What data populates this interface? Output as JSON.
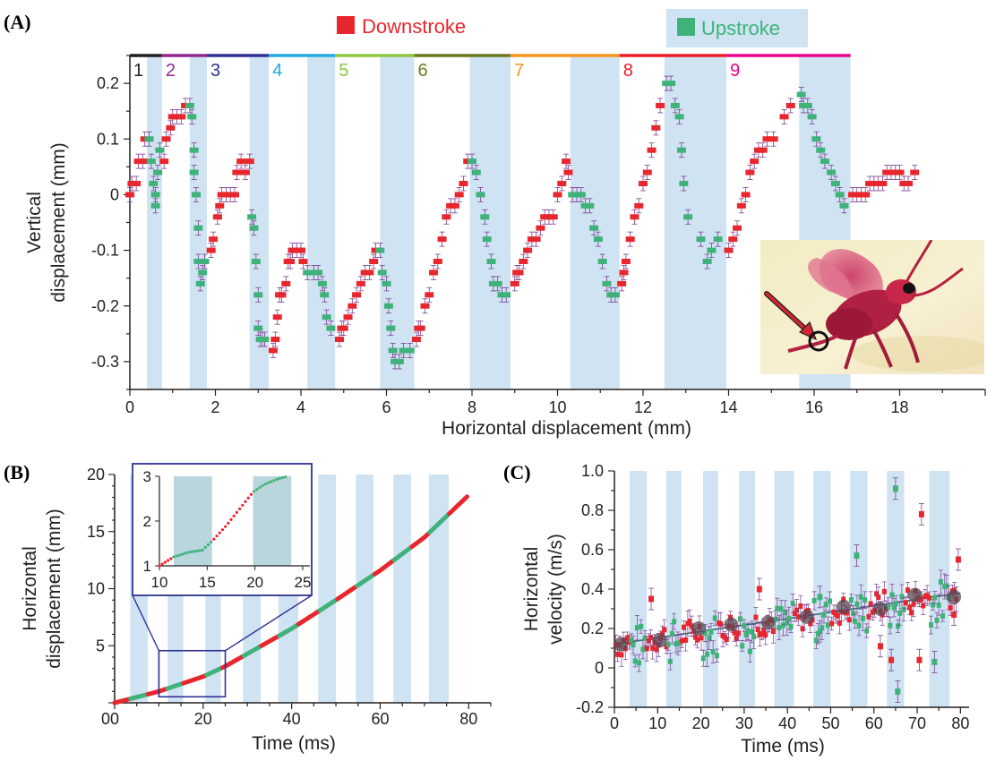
{
  "colors": {
    "downstroke": "#e8262e",
    "upstroke": "#3fb27a",
    "band": "#cfe3f3",
    "trend": "#3b6a73",
    "errorbar": "#7b3f91",
    "inset_frame": "#2e3192",
    "arrow": "#d22630"
  },
  "chart_data": [
    {
      "panel": "(A)",
      "type": "scatter",
      "xlabel": "Horizontal displacement (mm)",
      "ylabel_lines": [
        "Vertical",
        "displacement (mm)"
      ],
      "xlim": [
        0,
        20
      ],
      "ylim": [
        -0.35,
        0.25
      ],
      "xticks": [
        0,
        2,
        4,
        6,
        8,
        10,
        12,
        14,
        16,
        18
      ],
      "yticks": [
        0.2,
        0.1,
        0,
        -0.1,
        -0.2,
        -0.3
      ],
      "ytick_labels": [
        "0.2",
        "0.1",
        "0",
        "-0.1",
        "-0.2",
        "-0.3"
      ],
      "legend": {
        "downstroke": "Downstroke",
        "upstroke": "Upstroke"
      },
      "upstroke_bands_x": [
        [
          0.4,
          0.75
        ],
        [
          1.4,
          1.8
        ],
        [
          2.8,
          3.25
        ],
        [
          4.15,
          4.8
        ],
        [
          5.85,
          6.65
        ],
        [
          7.95,
          8.9
        ],
        [
          10.3,
          11.45
        ],
        [
          12.5,
          13.95
        ],
        [
          15.65,
          16.85
        ]
      ],
      "stroke_segments": [
        {
          "label": "1",
          "x": [
            0.0,
            0.75
          ],
          "color": "#231f20"
        },
        {
          "label": "2",
          "x": [
            0.75,
            1.8
          ],
          "color": "#92278f"
        },
        {
          "label": "3",
          "x": [
            1.8,
            3.25
          ],
          "color": "#2e3192"
        },
        {
          "label": "4",
          "x": [
            3.25,
            4.8
          ],
          "color": "#27aae1"
        },
        {
          "label": "5",
          "x": [
            4.8,
            6.65
          ],
          "color": "#8dc63f"
        },
        {
          "label": "6",
          "x": [
            6.65,
            8.9
          ],
          "color": "#6b7a1e"
        },
        {
          "label": "7",
          "x": [
            8.9,
            11.45
          ],
          "color": "#f7941d"
        },
        {
          "label": "8",
          "x": [
            11.45,
            13.95
          ],
          "color": "#ed1c24"
        },
        {
          "label": "9",
          "x": [
            13.95,
            16.85
          ],
          "color": "#ec008c"
        }
      ],
      "downstroke_points": [
        [
          0.0,
          0.0
        ],
        [
          0.05,
          0.02
        ],
        [
          0.15,
          0.02
        ],
        [
          0.2,
          0.06
        ],
        [
          0.3,
          0.06
        ],
        [
          0.35,
          0.1
        ],
        [
          0.8,
          0.06
        ],
        [
          0.85,
          0.1
        ],
        [
          0.95,
          0.12
        ],
        [
          1.0,
          0.14
        ],
        [
          1.1,
          0.14
        ],
        [
          1.2,
          0.14
        ],
        [
          1.3,
          0.16
        ],
        [
          1.9,
          -0.1
        ],
        [
          1.95,
          -0.08
        ],
        [
          2.05,
          -0.04
        ],
        [
          2.1,
          -0.02
        ],
        [
          2.15,
          0.0
        ],
        [
          2.25,
          0.0
        ],
        [
          2.35,
          0.0
        ],
        [
          2.45,
          0.0
        ],
        [
          2.5,
          0.04
        ],
        [
          2.6,
          0.06
        ],
        [
          2.7,
          0.04
        ],
        [
          2.8,
          0.06
        ],
        [
          3.35,
          -0.28
        ],
        [
          3.4,
          -0.26
        ],
        [
          3.45,
          -0.22
        ],
        [
          3.5,
          -0.18
        ],
        [
          3.55,
          -0.18
        ],
        [
          3.65,
          -0.16
        ],
        [
          3.7,
          -0.12
        ],
        [
          3.75,
          -0.12
        ],
        [
          3.8,
          -0.1
        ],
        [
          3.9,
          -0.1
        ],
        [
          4.0,
          -0.1
        ],
        [
          4.05,
          -0.12
        ],
        [
          4.9,
          -0.26
        ],
        [
          4.95,
          -0.24
        ],
        [
          5.0,
          -0.24
        ],
        [
          5.1,
          -0.22
        ],
        [
          5.2,
          -0.2
        ],
        [
          5.3,
          -0.18
        ],
        [
          5.4,
          -0.16
        ],
        [
          5.5,
          -0.14
        ],
        [
          5.6,
          -0.14
        ],
        [
          5.7,
          -0.12
        ],
        [
          5.75,
          -0.1
        ],
        [
          6.7,
          -0.26
        ],
        [
          6.75,
          -0.24
        ],
        [
          6.8,
          -0.24
        ],
        [
          6.9,
          -0.2
        ],
        [
          7.0,
          -0.18
        ],
        [
          7.1,
          -0.14
        ],
        [
          7.2,
          -0.12
        ],
        [
          7.3,
          -0.08
        ],
        [
          7.4,
          -0.04
        ],
        [
          7.5,
          -0.02
        ],
        [
          7.6,
          -0.02
        ],
        [
          7.7,
          0.0
        ],
        [
          7.8,
          0.02
        ],
        [
          7.9,
          0.06
        ],
        [
          9.0,
          -0.16
        ],
        [
          9.05,
          -0.14
        ],
        [
          9.1,
          -0.14
        ],
        [
          9.2,
          -0.12
        ],
        [
          9.3,
          -0.1
        ],
        [
          9.4,
          -0.08
        ],
        [
          9.5,
          -0.08
        ],
        [
          9.6,
          -0.06
        ],
        [
          9.7,
          -0.04
        ],
        [
          9.8,
          -0.04
        ],
        [
          9.9,
          -0.04
        ],
        [
          10.0,
          0.0
        ],
        [
          10.1,
          0.02
        ],
        [
          10.2,
          0.06
        ],
        [
          10.25,
          0.04
        ],
        [
          11.5,
          -0.16
        ],
        [
          11.55,
          -0.14
        ],
        [
          11.6,
          -0.12
        ],
        [
          11.7,
          -0.08
        ],
        [
          11.8,
          -0.04
        ],
        [
          11.9,
          -0.02
        ],
        [
          12.0,
          0.02
        ],
        [
          12.1,
          0.04
        ],
        [
          12.2,
          0.08
        ],
        [
          12.3,
          0.12
        ],
        [
          12.4,
          0.16
        ],
        [
          14.0,
          -0.1
        ],
        [
          14.1,
          -0.08
        ],
        [
          14.2,
          -0.06
        ],
        [
          14.3,
          -0.02
        ],
        [
          14.4,
          0.0
        ],
        [
          14.5,
          0.04
        ],
        [
          14.6,
          0.06
        ],
        [
          14.7,
          0.08
        ],
        [
          14.8,
          0.08
        ],
        [
          14.9,
          0.1
        ],
        [
          15.05,
          0.1
        ],
        [
          15.3,
          0.14
        ],
        [
          15.45,
          0.16
        ],
        [
          16.9,
          0.0
        ],
        [
          17.0,
          0.0
        ],
        [
          17.1,
          0.0
        ],
        [
          17.2,
          0.0
        ],
        [
          17.3,
          0.02
        ],
        [
          17.4,
          0.02
        ],
        [
          17.5,
          0.02
        ],
        [
          17.6,
          0.02
        ],
        [
          17.7,
          0.04
        ],
        [
          17.8,
          0.04
        ],
        [
          17.9,
          0.04
        ],
        [
          18.0,
          0.04
        ],
        [
          18.1,
          0.02
        ],
        [
          18.2,
          0.02
        ],
        [
          18.35,
          0.04
        ]
      ],
      "upstroke_points": [
        [
          0.45,
          0.1
        ],
        [
          0.5,
          0.06
        ],
        [
          0.55,
          0.02
        ],
        [
          0.6,
          0.0
        ],
        [
          0.6,
          -0.02
        ],
        [
          0.65,
          0.04
        ],
        [
          0.7,
          0.08
        ],
        [
          1.4,
          0.16
        ],
        [
          1.45,
          0.14
        ],
        [
          1.5,
          0.08
        ],
        [
          1.5,
          0.04
        ],
        [
          1.55,
          0.0
        ],
        [
          1.6,
          -0.06
        ],
        [
          1.6,
          -0.12
        ],
        [
          1.65,
          -0.16
        ],
        [
          1.7,
          -0.14
        ],
        [
          1.75,
          -0.12
        ],
        [
          2.85,
          -0.04
        ],
        [
          2.9,
          -0.06
        ],
        [
          2.95,
          -0.12
        ],
        [
          3.0,
          -0.18
        ],
        [
          3.0,
          -0.24
        ],
        [
          3.05,
          -0.26
        ],
        [
          3.1,
          -0.26
        ],
        [
          3.15,
          -0.26
        ],
        [
          4.15,
          -0.14
        ],
        [
          4.3,
          -0.14
        ],
        [
          4.4,
          -0.14
        ],
        [
          4.5,
          -0.16
        ],
        [
          4.55,
          -0.18
        ],
        [
          4.6,
          -0.22
        ],
        [
          4.7,
          -0.24
        ],
        [
          5.85,
          -0.1
        ],
        [
          5.9,
          -0.14
        ],
        [
          6.0,
          -0.16
        ],
        [
          6.05,
          -0.2
        ],
        [
          6.1,
          -0.24
        ],
        [
          6.15,
          -0.28
        ],
        [
          6.2,
          -0.3
        ],
        [
          6.3,
          -0.3
        ],
        [
          6.4,
          -0.28
        ],
        [
          6.55,
          -0.28
        ],
        [
          8.0,
          0.06
        ],
        [
          8.1,
          0.04
        ],
        [
          8.2,
          0.0
        ],
        [
          8.3,
          -0.04
        ],
        [
          8.35,
          -0.08
        ],
        [
          8.45,
          -0.12
        ],
        [
          8.5,
          -0.16
        ],
        [
          8.6,
          -0.16
        ],
        [
          8.7,
          -0.18
        ],
        [
          8.8,
          -0.18
        ],
        [
          10.35,
          0.0
        ],
        [
          10.45,
          0.0
        ],
        [
          10.55,
          0.0
        ],
        [
          10.65,
          -0.02
        ],
        [
          10.75,
          -0.02
        ],
        [
          10.85,
          -0.06
        ],
        [
          10.95,
          -0.08
        ],
        [
          11.05,
          -0.12
        ],
        [
          11.15,
          -0.16
        ],
        [
          11.25,
          -0.18
        ],
        [
          11.35,
          -0.18
        ],
        [
          12.55,
          0.2
        ],
        [
          12.65,
          0.2
        ],
        [
          12.75,
          0.16
        ],
        [
          12.85,
          0.14
        ],
        [
          12.9,
          0.08
        ],
        [
          12.95,
          0.02
        ],
        [
          13.05,
          -0.04
        ],
        [
          13.35,
          -0.08
        ],
        [
          13.5,
          -0.12
        ],
        [
          13.6,
          -0.1
        ],
        [
          13.75,
          -0.08
        ],
        [
          15.7,
          0.18
        ],
        [
          15.75,
          0.16
        ],
        [
          15.85,
          0.16
        ],
        [
          15.95,
          0.14
        ],
        [
          16.05,
          0.1
        ],
        [
          16.15,
          0.08
        ],
        [
          16.25,
          0.06
        ],
        [
          16.4,
          0.04
        ],
        [
          16.5,
          0.02
        ],
        [
          16.6,
          0.0
        ],
        [
          16.7,
          -0.02
        ]
      ]
    },
    {
      "panel": "(B)",
      "type": "scatter",
      "xlabel": "Time (ms)",
      "ylabel_lines": [
        "Horizontal",
        "displacement (mm)"
      ],
      "xlim": [
        0,
        85
      ],
      "ylim": [
        0,
        20
      ],
      "xticks": [
        0,
        20,
        40,
        60,
        80
      ],
      "yticks": [
        5,
        10,
        15,
        20
      ],
      "upstroke_bands_t": [
        [
          3.5,
          7.5
        ],
        [
          12,
          15.5
        ],
        [
          20.5,
          24
        ],
        [
          29,
          33
        ],
        [
          37,
          41.5
        ],
        [
          46,
          50
        ],
        [
          54.5,
          58.5
        ],
        [
          63,
          67
        ],
        [
          71,
          75.5
        ]
      ],
      "trace_knots": [
        [
          0,
          0
        ],
        [
          10,
          1
        ],
        [
          20,
          2.3
        ],
        [
          25,
          3.2
        ],
        [
          30,
          4.3
        ],
        [
          40,
          6.5
        ],
        [
          50,
          9.0
        ],
        [
          60,
          11.6
        ],
        [
          70,
          14.5
        ],
        [
          80,
          18.2
        ]
      ],
      "inset": {
        "xlim": [
          10,
          25
        ],
        "ylim": [
          1,
          3
        ],
        "xticks": [
          10,
          15,
          20,
          25
        ],
        "yticks": [
          1,
          2,
          3
        ],
        "bands_t": [
          [
            11.5,
            15.5
          ],
          [
            19.8,
            23.8
          ]
        ],
        "knots": [
          [
            10.0,
            1.0
          ],
          [
            11.5,
            1.2
          ],
          [
            13.0,
            1.3
          ],
          [
            14.5,
            1.35
          ],
          [
            15.5,
            1.55
          ],
          [
            17.0,
            1.9
          ],
          [
            18.5,
            2.3
          ],
          [
            19.8,
            2.65
          ],
          [
            21.0,
            2.82
          ],
          [
            22.5,
            2.95
          ],
          [
            23.5,
            3.0
          ]
        ]
      }
    },
    {
      "panel": "(C)",
      "type": "scatter",
      "xlabel": "Time (ms)",
      "ylabel_lines": [
        "Horizontal",
        "velocity (m/s)"
      ],
      "xlim": [
        0,
        82
      ],
      "ylim": [
        -0.2,
        1.0
      ],
      "xticks": [
        0,
        10,
        20,
        30,
        40,
        50,
        60,
        70,
        80
      ],
      "yticks": [
        1.0,
        0.8,
        0.6,
        0.4,
        0.2,
        0,
        -0.2
      ],
      "ytick_labels": [
        "1.0",
        "0.8",
        "0.6",
        "0.4",
        "0.2",
        "0",
        "-0.2"
      ],
      "upstroke_bands_t": [
        [
          3.5,
          7.5
        ],
        [
          12,
          15.5
        ],
        [
          20.5,
          24
        ],
        [
          28.8,
          32.5
        ],
        [
          37,
          41.5
        ],
        [
          46,
          50
        ],
        [
          54.5,
          58.5
        ],
        [
          63,
          67
        ],
        [
          72.8,
          77.5
        ]
      ],
      "trend_line": [
        [
          0,
          0.12
        ],
        [
          80,
          0.38
        ]
      ],
      "cycle_means": [
        [
          1.5,
          0.12
        ],
        [
          10.5,
          0.14
        ],
        [
          19.5,
          0.2
        ],
        [
          27,
          0.22
        ],
        [
          35.5,
          0.23
        ],
        [
          44.5,
          0.26
        ],
        [
          53,
          0.31
        ],
        [
          61.5,
          0.3
        ],
        [
          69.5,
          0.37
        ],
        [
          78.5,
          0.36
        ]
      ],
      "outliers_down": [
        [
          8.5,
          0.35
        ],
        [
          33.5,
          0.4
        ],
        [
          61.5,
          0.11
        ],
        [
          64,
          0.04
        ],
        [
          70.5,
          0.04
        ],
        [
          71,
          0.78
        ],
        [
          78.5,
          0.27
        ],
        [
          79.5,
          0.55
        ]
      ],
      "outliers_up": [
        [
          47.5,
          0.36
        ],
        [
          56,
          0.57
        ],
        [
          65,
          0.91
        ],
        [
          65.5,
          -0.12
        ],
        [
          74,
          0.03
        ]
      ]
    }
  ]
}
